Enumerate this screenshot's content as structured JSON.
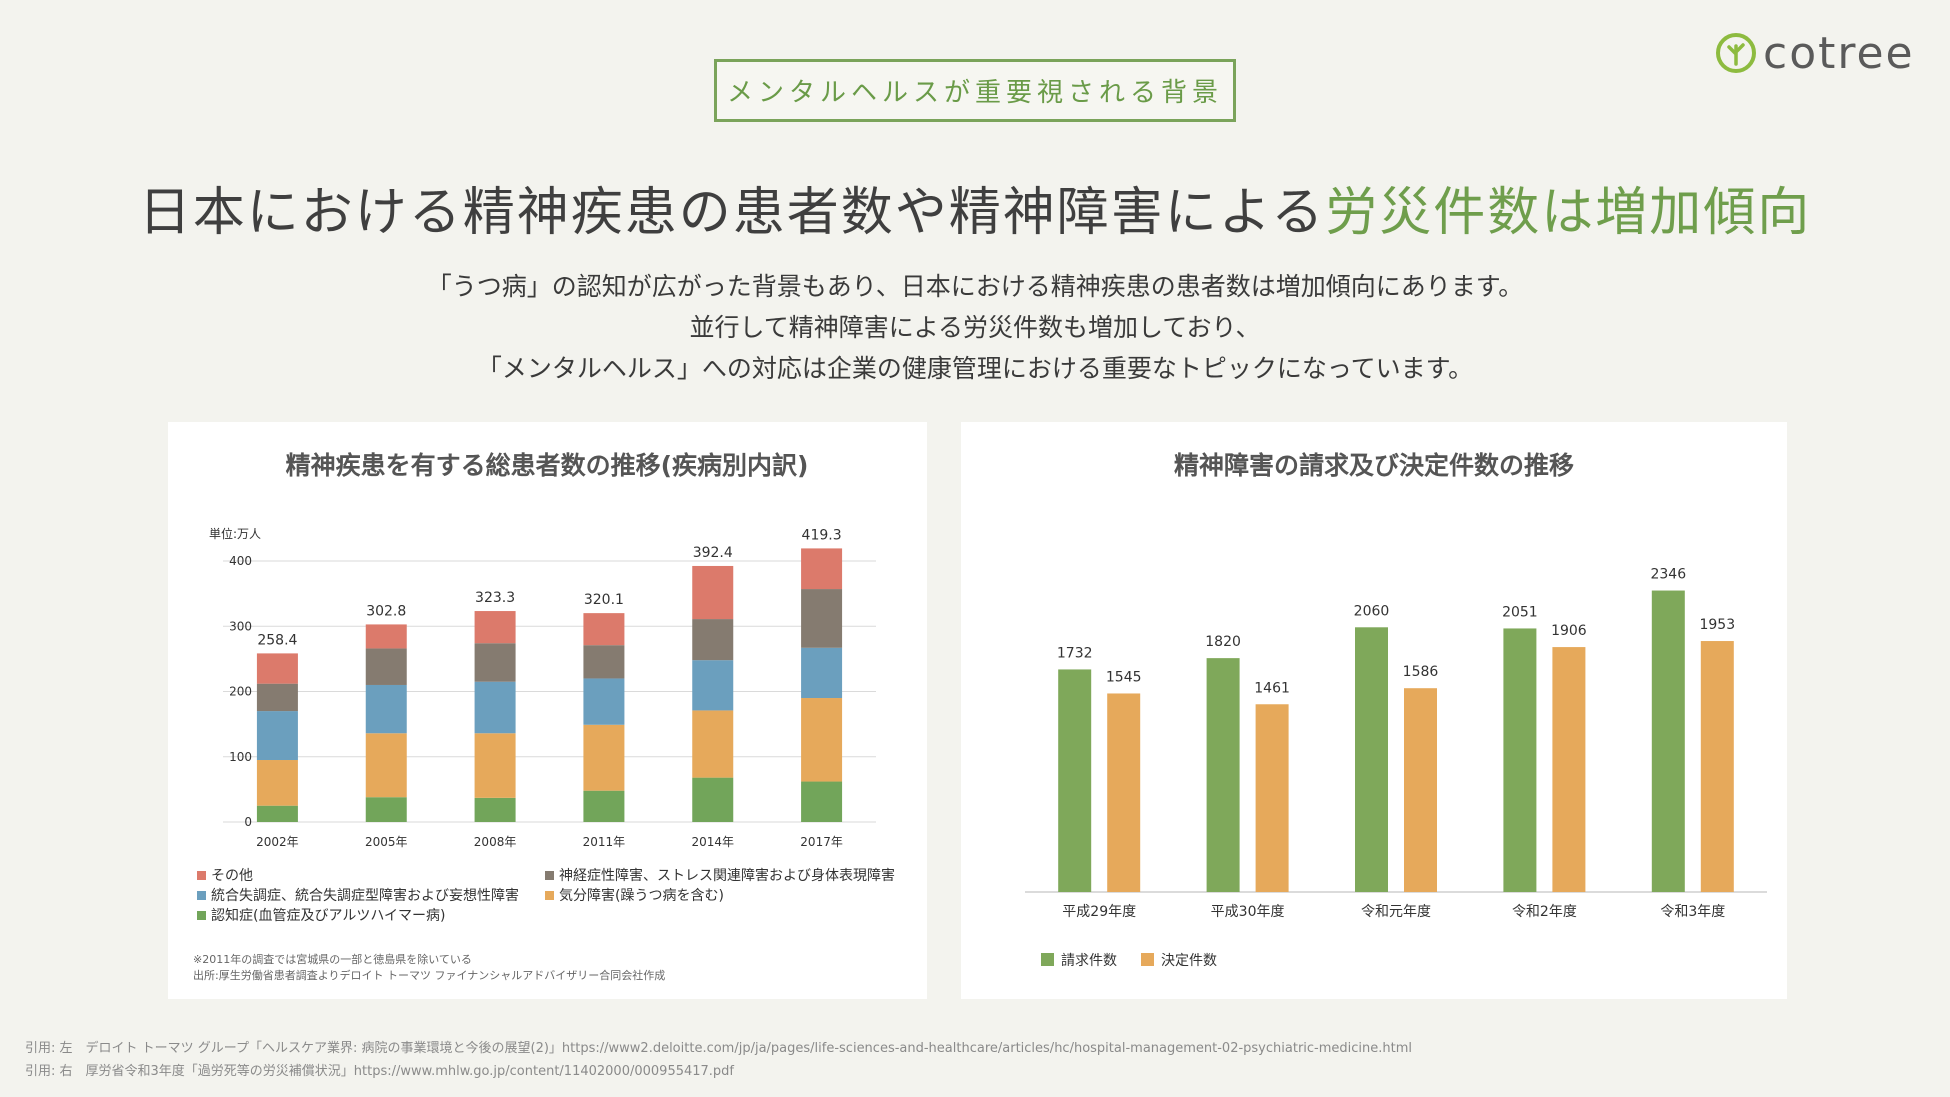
{
  "header": {
    "tag": "メンタルヘルスが重要視される背景",
    "logo_text": "cotree",
    "title_main": "日本における精神疾患の患者数や精神障害による",
    "title_highlight": "労災件数は増加傾向"
  },
  "lead": {
    "line1": "「うつ病」の認知が広がった背景もあり、日本における精神疾患の患者数は増加傾向にあります。",
    "line2": "並行して精神障害による労災件数も増加しており、",
    "line3": "「メンタルヘルス」への対応は企業の健康管理における重要なトピックになっています。"
  },
  "colors": {
    "accent_green": "#6f9e4c",
    "other": "#dc7a6b",
    "neurotic": "#857b70",
    "schizo": "#6b9fbe",
    "mood": "#e6a95b",
    "dementia": "#72a55a",
    "claims": "#7fa85a",
    "decisions": "#e6a95b"
  },
  "chart_data": [
    {
      "type": "bar",
      "stacked": true,
      "title": "精神疾患を有する総患者数の推移(疾病別内訳)",
      "unit_label": "単位:万人",
      "categories": [
        "2002年",
        "2005年",
        "2008年",
        "2011年",
        "2014年",
        "2017年"
      ],
      "totals": [
        "258.4",
        "302.8",
        "323.3",
        "320.1",
        "392.4",
        "419.3"
      ],
      "total_values": [
        258.4,
        302.8,
        323.3,
        320.1,
        392.4,
        419.3
      ],
      "ylim": [
        0,
        400
      ],
      "yticks": [
        "0",
        "100",
        "200",
        "300",
        "400"
      ],
      "series": [
        {
          "name": "認知症(血管症及びアルツハイマー病)",
          "values": [
            25,
            38,
            37,
            48,
            68,
            62
          ]
        },
        {
          "name": "気分障害(躁うつ病を含む)",
          "values": [
            70,
            98,
            99,
            101,
            103,
            128
          ]
        },
        {
          "name": "統合失調症、統合失調症型障害および妄想性障害",
          "values": [
            75,
            74,
            79,
            71,
            77,
            77
          ]
        },
        {
          "name": "神経症性障害、ストレス関連障害および身体表現障害",
          "values": [
            42,
            56,
            59,
            51,
            63,
            90
          ]
        },
        {
          "name": "その他",
          "values": [
            46.4,
            36.8,
            49.3,
            49.1,
            81.4,
            62.3
          ]
        }
      ],
      "notes": [
        "※2011年の調査では宮城県の一部と徳島県を除いている",
        "出所:厚生労働省患者調査よりデロイト トーマツ ファイナンシャルアドバイザリー合同会社作成"
      ]
    },
    {
      "type": "bar",
      "title": "精神障害の請求及び決定件数の推移",
      "categories": [
        "平成29年度",
        "平成30年度",
        "令和元年度",
        "令和2年度",
        "令和3年度"
      ],
      "ylim": [
        0,
        2400
      ],
      "series": [
        {
          "name": "請求件数",
          "values": [
            1732,
            1820,
            2060,
            2051,
            2346
          ],
          "labels": [
            "1732",
            "1820",
            "2060",
            "2051",
            "2346"
          ]
        },
        {
          "name": "決定件数",
          "values": [
            1545,
            1461,
            1586,
            1906,
            1953
          ],
          "labels": [
            "1545",
            "1461",
            "1586",
            "1906",
            "1953"
          ]
        }
      ]
    }
  ],
  "citations": {
    "left": "引用: 左　デロイト トーマツ グループ「ヘルスケア業界: 病院の事業環境と今後の展望(2)」https://www2.deloitte.com/jp/ja/pages/life-sciences-and-healthcare/articles/hc/hospital-management-02-psychiatric-medicine.html",
    "right": "引用: 右　厚労省令和3年度「過労死等の労災補償状況」https://www.mhlw.go.jp/content/11402000/000955417.pdf"
  }
}
